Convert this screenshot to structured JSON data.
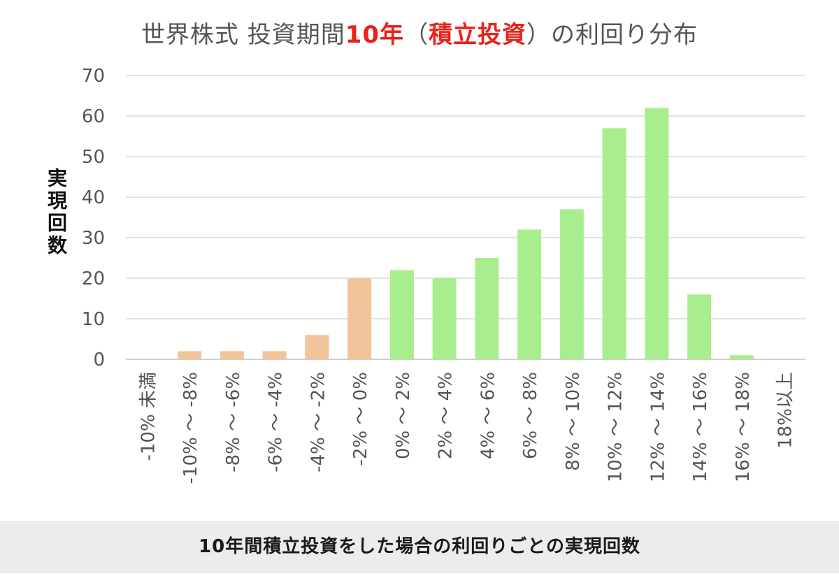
{
  "title": {
    "prefix": "世界株式  投資期間",
    "highlight1": "10年",
    "mid1": "（",
    "highlight2": "積立投資",
    "suffix": "）の利回り分布"
  },
  "colors": {
    "negative_bar": "#f2c499",
    "positive_bar": "#a8ee8e",
    "accent_text": "#e8231b",
    "grid": "#d9d9d9"
  },
  "caption": "10年間積立投資をした場合の利回りごとの実現回数",
  "chart_data": {
    "type": "bar",
    "title": "世界株式  投資期間10年（積立投資）の利回り分布",
    "xlabel": "",
    "ylabel": "実現回数",
    "ylim": [
      0,
      70
    ],
    "yticks": [
      0,
      10,
      20,
      30,
      40,
      50,
      60,
      70
    ],
    "grid": true,
    "categories": [
      "-10% 未満",
      "-10% ～ -8%",
      "-8% ～ -6%",
      "-6% ～ -4%",
      "-4% ～ -2%",
      "-2% ～ 0%",
      "0% ～ 2%",
      "2% ～ 4%",
      "4% ～ 6%",
      "6% ～ 8%",
      "8% ～ 10%",
      "10% ～ 12%",
      "12% ～ 14%",
      "14% ～ 16%",
      "16% ～ 18%",
      "18%以上"
    ],
    "values": [
      0,
      2,
      2,
      2,
      6,
      20,
      22,
      20,
      25,
      32,
      37,
      57,
      62,
      16,
      1,
      0
    ],
    "bar_groups": [
      "negative",
      "negative",
      "negative",
      "negative",
      "negative",
      "negative",
      "positive",
      "positive",
      "positive",
      "positive",
      "positive",
      "positive",
      "positive",
      "positive",
      "positive",
      "positive"
    ]
  }
}
